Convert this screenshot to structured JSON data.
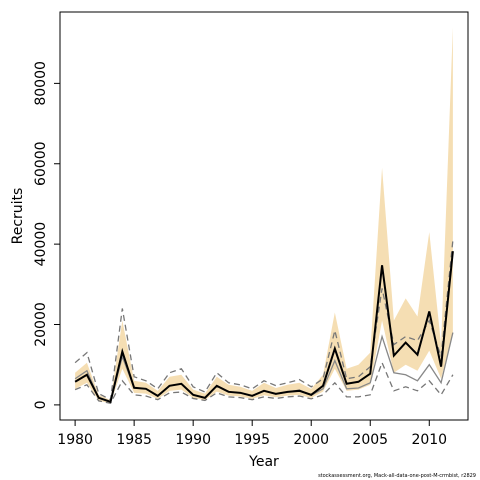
{
  "chart_data": {
    "type": "line",
    "x_label": "Year",
    "y_label": "Recruits",
    "caption": "stockassessment.org, Mack-all-data-one-post-M-crmbist, r2829",
    "x": [
      1980,
      1981,
      1982,
      1983,
      1984,
      1985,
      1986,
      1987,
      1988,
      1989,
      1990,
      1991,
      1992,
      1993,
      1994,
      1995,
      1996,
      1997,
      1998,
      1999,
      2000,
      2001,
      2002,
      2003,
      2004,
      2005,
      2006,
      2007,
      2008,
      2009,
      2010,
      2011,
      2012
    ],
    "xlim": [
      1978.72,
      2013.28
    ],
    "xticks": [
      1980,
      1985,
      1990,
      1995,
      2000,
      2005,
      2010
    ],
    "ylim": [
      -3760,
      97760
    ],
    "yticks": [
      0,
      20000,
      40000,
      60000,
      80000
    ],
    "band": {
      "color": "#f5deb3",
      "upper": [
        8000,
        10500,
        2500,
        1200,
        21000,
        6000,
        5500,
        3500,
        7000,
        7500,
        3800,
        2800,
        7000,
        5000,
        4500,
        3500,
        5500,
        4200,
        5000,
        5500,
        4000,
        7500,
        23000,
        9000,
        10000,
        13000,
        59000,
        21000,
        26500,
        22000,
        43000,
        15000,
        94000
      ],
      "lower": [
        4000,
        5500,
        1000,
        400,
        9000,
        3000,
        2800,
        1500,
        3500,
        3800,
        1700,
        1200,
        3300,
        2300,
        2100,
        1500,
        2400,
        1900,
        2300,
        2500,
        1700,
        3300,
        9000,
        3500,
        3800,
        5000,
        21000,
        8000,
        10000,
        8500,
        13500,
        6500,
        18000
      ]
    },
    "series": [
      {
        "color": "#777777",
        "style": "dashed",
        "values": [
          10500,
          13000,
          2800,
          1300,
          24000,
          7000,
          6000,
          4000,
          8000,
          9000,
          4500,
          3200,
          8000,
          5500,
          5000,
          4000,
          6000,
          4800,
          5500,
          6300,
          4500,
          6500,
          18500,
          6500,
          7000,
          9500,
          29000,
          15000,
          17000,
          16000,
          21000,
          12000,
          41000
        ]
      },
      {
        "color": "#777777",
        "style": "dashed",
        "values": [
          3800,
          5000,
          1000,
          400,
          6000,
          2500,
          2200,
          1300,
          3000,
          3200,
          1600,
          1100,
          3000,
          2000,
          1800,
          1300,
          2000,
          1600,
          2000,
          2200,
          1500,
          2500,
          5500,
          2000,
          2000,
          2500,
          10500,
          3500,
          4500,
          3500,
          6000,
          2500,
          7500
        ]
      },
      {
        "color": "#888888",
        "style": "solid",
        "values": [
          6500,
          8500,
          1700,
          700,
          12000,
          4200,
          4000,
          2200,
          4800,
          5200,
          2500,
          1700,
          4800,
          3200,
          3000,
          2200,
          3500,
          2700,
          3200,
          3700,
          2400,
          4000,
          11000,
          4000,
          4200,
          5500,
          17000,
          8000,
          7500,
          6000,
          10000,
          5500,
          18000
        ]
      },
      {
        "color": "#000000",
        "style": "solid",
        "values": [
          5750,
          7500,
          1750,
          750,
          13250,
          4250,
          4000,
          2250,
          4750,
          5250,
          2500,
          1750,
          4750,
          3250,
          3000,
          2250,
          3500,
          2750,
          3250,
          3500,
          2500,
          4750,
          14000,
          5250,
          5750,
          7750,
          34750,
          12250,
          15500,
          12500,
          23250,
          9500,
          38250
        ]
      }
    ]
  }
}
